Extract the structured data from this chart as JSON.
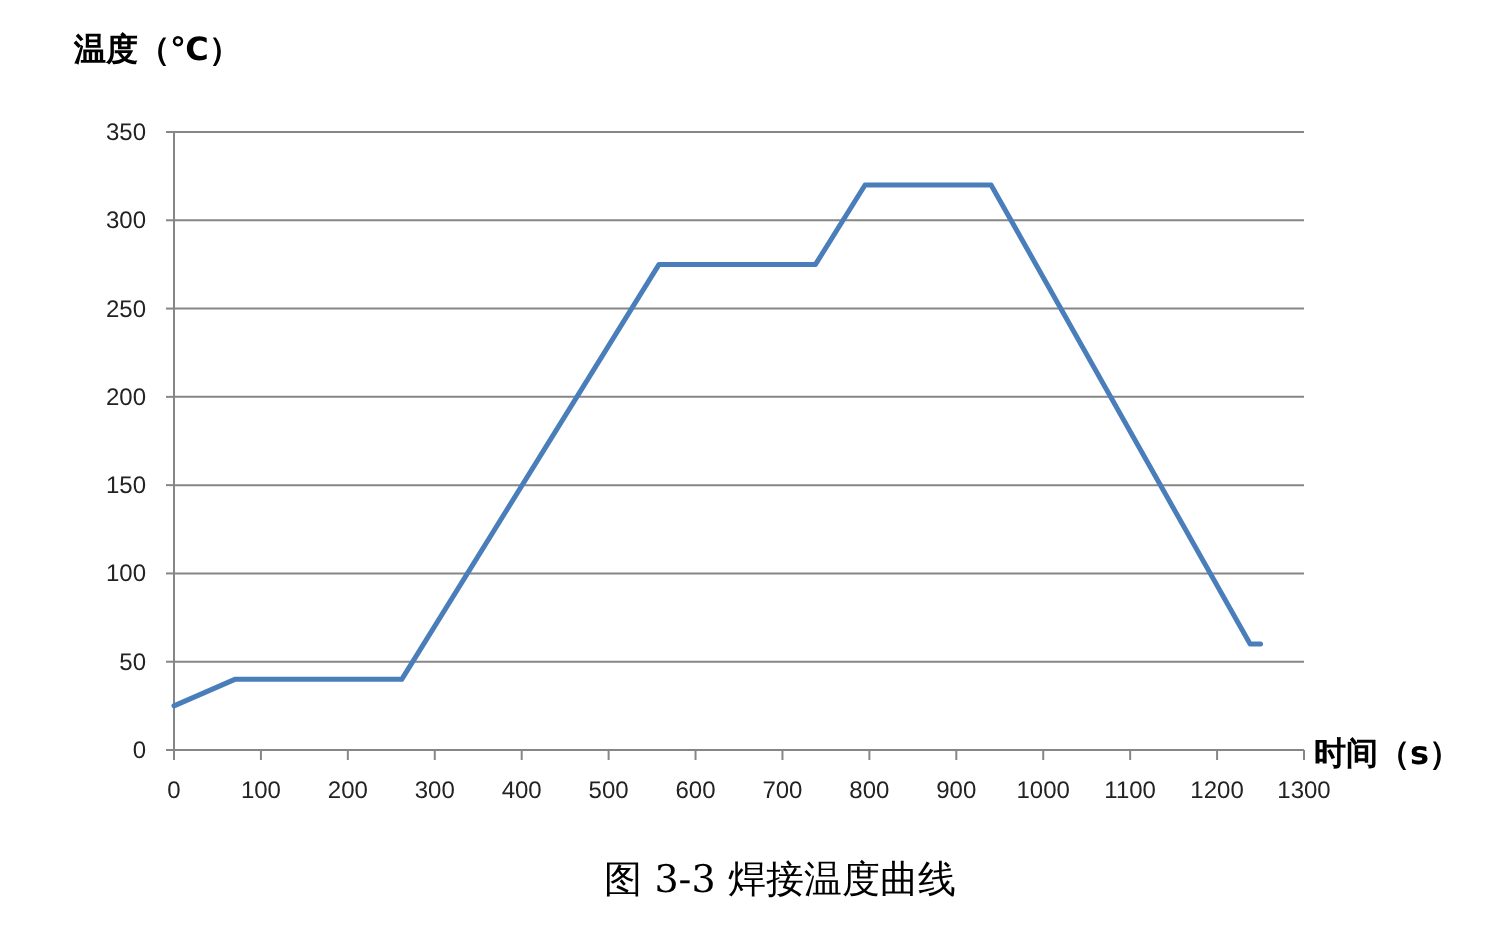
{
  "chart_data": {
    "type": "line",
    "title": "图 3-3  焊接温度曲线",
    "xlabel": "时间（s）",
    "ylabel": "温度（℃）",
    "x": [
      0,
      70,
      262,
      558,
      738,
      795,
      940,
      1238,
      1250
    ],
    "series": [
      {
        "color": "#4a7ebb",
        "values": [
          25,
          40,
          40,
          275,
          275,
          320,
          320,
          60,
          60
        ]
      }
    ],
    "xlim": [
      0,
      1300
    ],
    "xticks": [
      0,
      100,
      200,
      300,
      400,
      500,
      600,
      700,
      800,
      900,
      1000,
      1100,
      1200,
      1300
    ],
    "ylim": [
      0,
      350
    ],
    "yticks": [
      0,
      50,
      100,
      150,
      200,
      250,
      300,
      350
    ],
    "grid": "y"
  }
}
